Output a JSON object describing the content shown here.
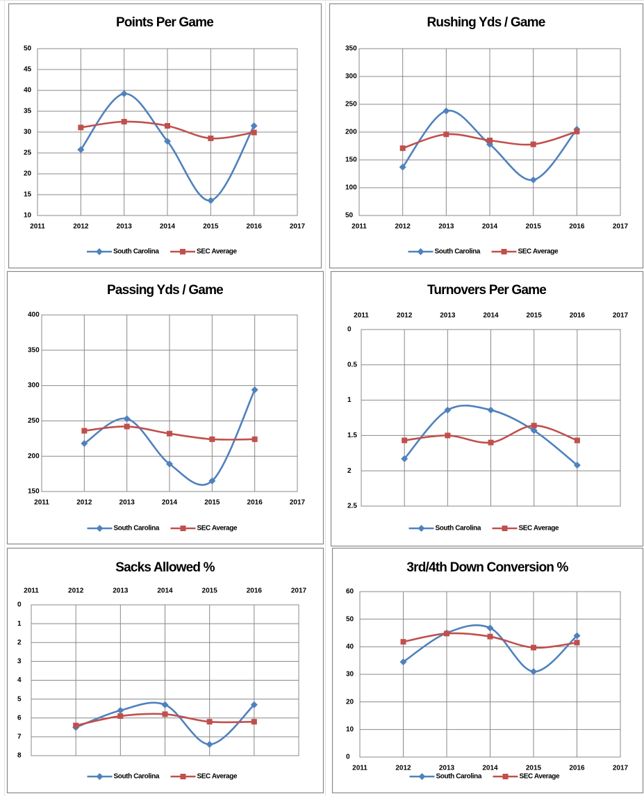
{
  "chart_data": [
    {
      "type": "line",
      "title": "Points Per Game",
      "smooth": true,
      "grid": true,
      "x": [
        2012,
        2013,
        2014,
        2015,
        2016
      ],
      "xlim": [
        2011,
        2017
      ],
      "xticks": [
        2011,
        2012,
        2013,
        2014,
        2015,
        2016,
        2017
      ],
      "ylim": [
        10,
        50
      ],
      "yticks": [
        10,
        15,
        20,
        25,
        30,
        35,
        40,
        45,
        50
      ],
      "legend": "bottom",
      "series": [
        {
          "name": "South Carolina",
          "color": "#4f81bd",
          "marker": "diamond",
          "values": [
            25.8,
            39.2,
            27.8,
            13.6,
            31.5
          ]
        },
        {
          "name": "SEC Average",
          "color": "#c0504d",
          "marker": "square",
          "values": [
            31.1,
            32.5,
            31.5,
            28.5,
            29.9
          ]
        }
      ]
    },
    {
      "type": "line",
      "title": "Rushing Yds / Game",
      "smooth": true,
      "grid": true,
      "x": [
        2012,
        2013,
        2014,
        2015,
        2016
      ],
      "xlim": [
        2011,
        2017
      ],
      "xticks": [
        2011,
        2012,
        2013,
        2014,
        2015,
        2016,
        2017
      ],
      "ylim": [
        50,
        350
      ],
      "yticks": [
        50,
        100,
        150,
        200,
        250,
        300,
        350
      ],
      "legend": "bottom",
      "series": [
        {
          "name": "South Carolina",
          "color": "#4f81bd",
          "marker": "diamond",
          "values": [
            137,
            238,
            178,
            114,
            205
          ]
        },
        {
          "name": "SEC Average",
          "color": "#c0504d",
          "marker": "square",
          "values": [
            171,
            196,
            185,
            178,
            201
          ]
        }
      ]
    },
    {
      "type": "line",
      "title": "Passing Yds / Game",
      "smooth": true,
      "grid": true,
      "x": [
        2012,
        2013,
        2014,
        2015,
        2016
      ],
      "xlim": [
        2011,
        2017
      ],
      "xticks": [
        2011,
        2012,
        2013,
        2014,
        2015,
        2016,
        2017
      ],
      "ylim": [
        150,
        400
      ],
      "yticks": [
        150,
        200,
        250,
        300,
        350,
        400
      ],
      "legend": "bottom",
      "series": [
        {
          "name": "South Carolina",
          "color": "#4f81bd",
          "marker": "diamond",
          "values": [
            218,
            253,
            189,
            165,
            294
          ]
        },
        {
          "name": "SEC Average",
          "color": "#c0504d",
          "marker": "square",
          "values": [
            236,
            242,
            232,
            224,
            224
          ]
        }
      ]
    },
    {
      "type": "line",
      "title": "Turnovers Per Game",
      "smooth": true,
      "grid": true,
      "y_inverted": true,
      "x": [
        2012,
        2013,
        2014,
        2015,
        2016
      ],
      "xlim": [
        2011,
        2017
      ],
      "xticks": [
        2011,
        2012,
        2013,
        2014,
        2015,
        2016,
        2017
      ],
      "ylim": [
        0,
        2.5
      ],
      "yticks": [
        0,
        0.5,
        1,
        1.5,
        2,
        2.5
      ],
      "legend": "bottom",
      "series": [
        {
          "name": "South Carolina",
          "color": "#4f81bd",
          "marker": "diamond",
          "values": [
            1.83,
            1.14,
            1.14,
            1.43,
            1.92
          ]
        },
        {
          "name": "SEC Average",
          "color": "#c0504d",
          "marker": "square",
          "values": [
            1.57,
            1.5,
            1.6,
            1.36,
            1.57
          ]
        }
      ]
    },
    {
      "type": "line",
      "title": "Sacks Allowed %",
      "smooth": true,
      "grid": true,
      "y_inverted": true,
      "x": [
        2012,
        2013,
        2014,
        2015,
        2016
      ],
      "xlim": [
        2011,
        2017
      ],
      "xticks": [
        2011,
        2012,
        2013,
        2014,
        2015,
        2016,
        2017
      ],
      "ylim": [
        0,
        8
      ],
      "yticks": [
        0,
        1,
        2,
        3,
        4,
        5,
        6,
        7,
        8
      ],
      "legend": "bottom",
      "series": [
        {
          "name": "South Carolina",
          "color": "#4f81bd",
          "marker": "diamond",
          "values": [
            6.5,
            5.6,
            5.3,
            7.4,
            5.3
          ]
        },
        {
          "name": "SEC Average",
          "color": "#c0504d",
          "marker": "square",
          "values": [
            6.4,
            5.9,
            5.8,
            6.2,
            6.2
          ]
        }
      ]
    },
    {
      "type": "line",
      "title": "3rd/4th Down Conversion %",
      "smooth": true,
      "grid": true,
      "x": [
        2012,
        2013,
        2014,
        2015,
        2016
      ],
      "xlim": [
        2011,
        2017
      ],
      "xticks": [
        2011,
        2012,
        2013,
        2014,
        2015,
        2016,
        2017
      ],
      "ylim": [
        0,
        60
      ],
      "yticks": [
        0,
        10,
        20,
        30,
        40,
        50,
        60
      ],
      "legend": "bottom",
      "series": [
        {
          "name": "South Carolina",
          "color": "#4f81bd",
          "marker": "diamond",
          "values": [
            34.5,
            45,
            46.8,
            31,
            44
          ]
        },
        {
          "name": "SEC Average",
          "color": "#c0504d",
          "marker": "square",
          "values": [
            41.8,
            44.8,
            43.7,
            39.7,
            41.5
          ]
        }
      ]
    }
  ]
}
